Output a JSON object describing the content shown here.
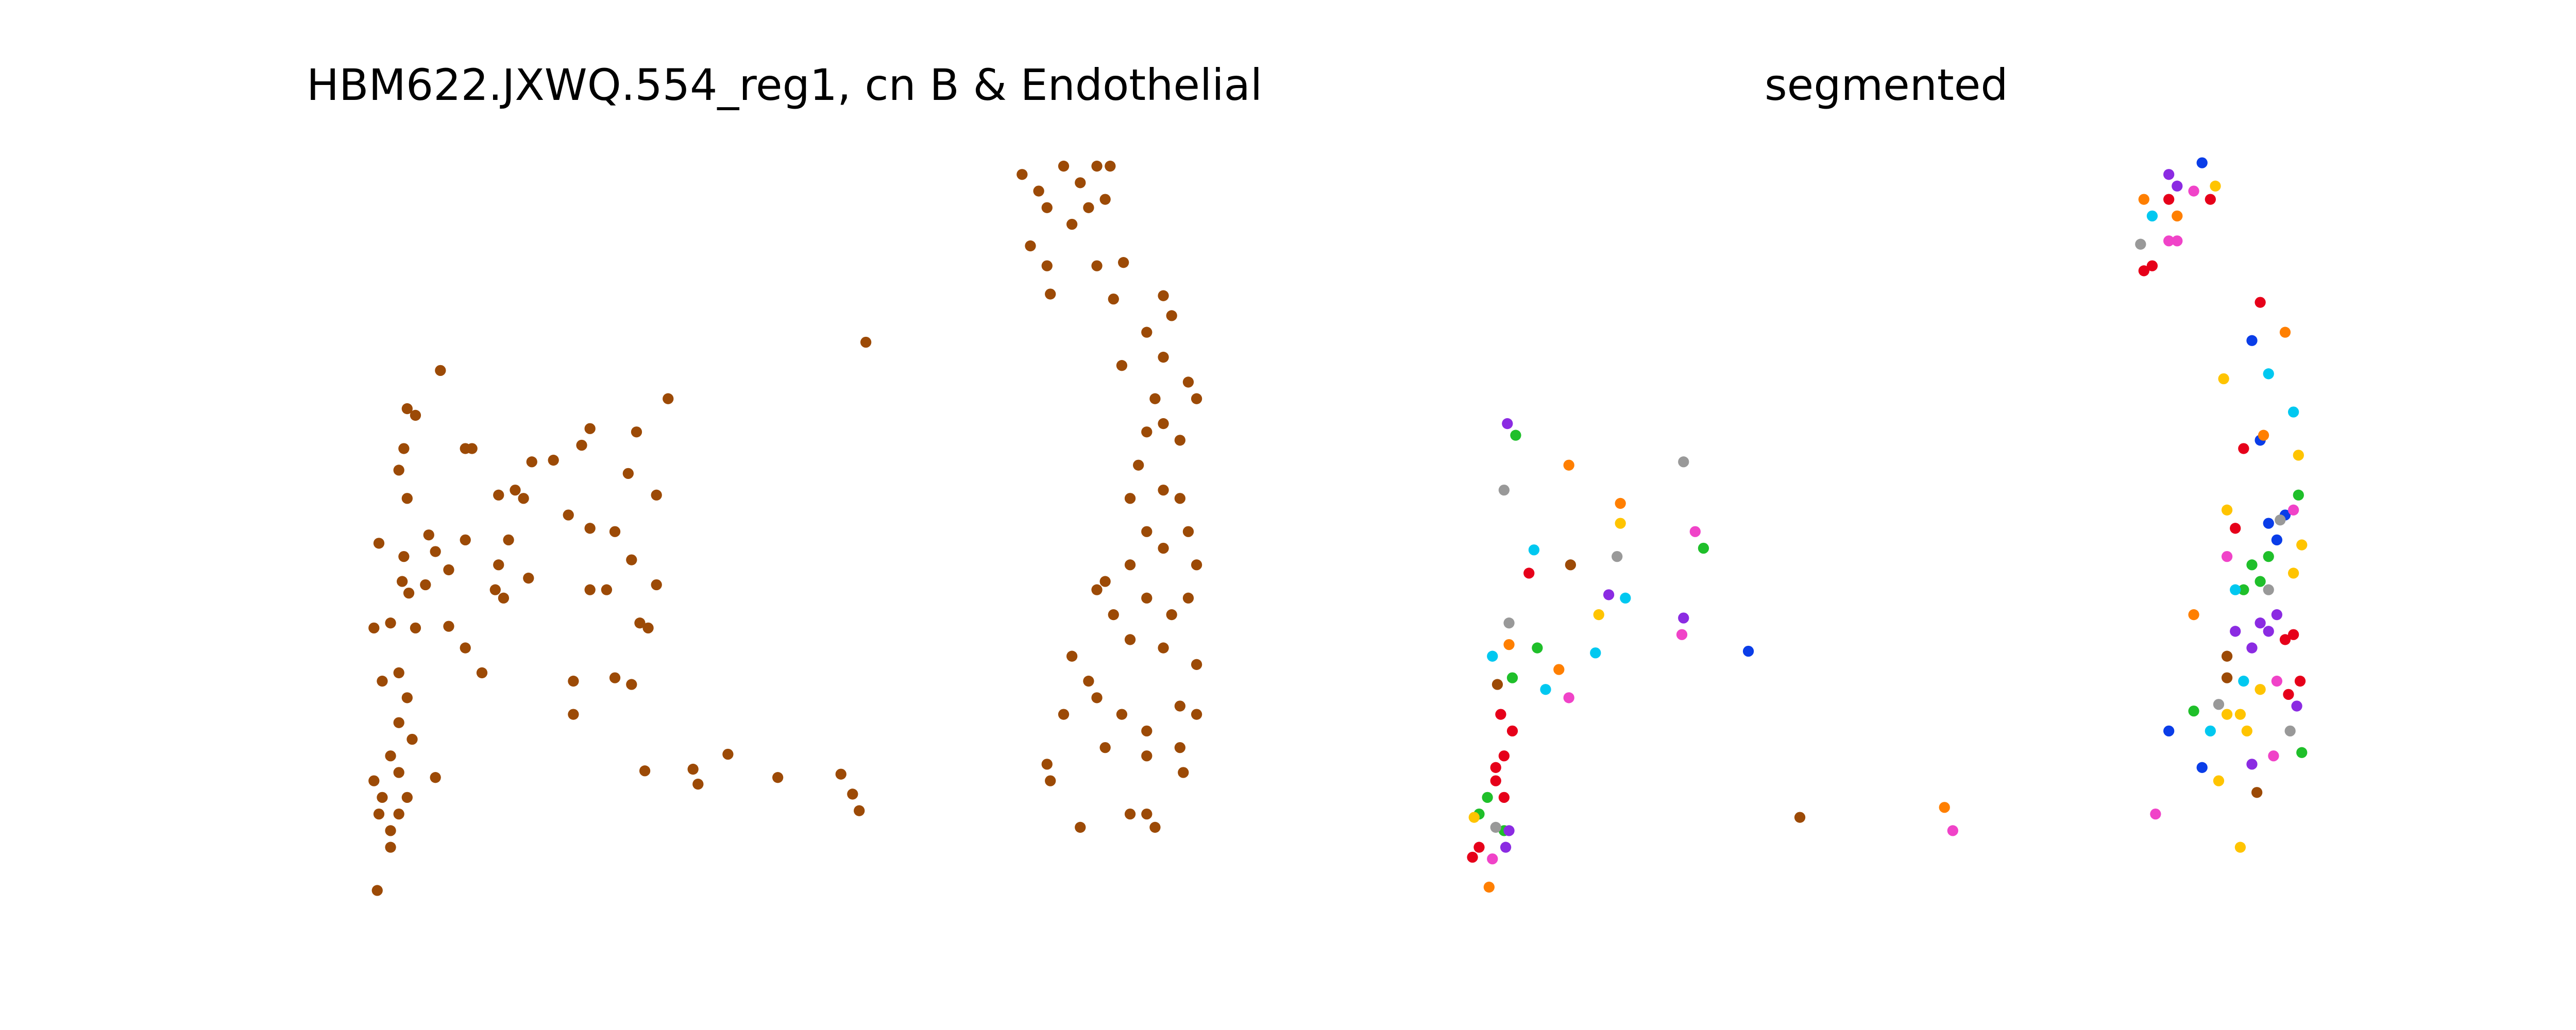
{
  "chart_data": [
    {
      "type": "scatter",
      "title": "HBM622.JXWQ.554_reg1, cn B & Endothelial",
      "xlim": [
        0,
        775
      ],
      "ylim": [
        620,
        0
      ],
      "series": [
        {
          "color": "#9c4a06",
          "x": [
            265,
            245,
            250,
            243,
            240,
            245,
            280,
            284,
            228,
            258,
            262,
            243,
            242,
            246,
            256,
            270,
            280,
            300,
            310,
            315,
            306,
            298,
            303,
            300,
            318,
            320,
            333,
            350,
            355,
            383,
            402,
            378,
            395,
            342,
            355,
            370,
            380,
            395,
            355,
            365,
            390,
            385,
            345,
            345,
            370,
            380,
            225,
            235,
            250,
            270,
            280,
            290,
            230,
            240,
            245,
            240,
            248,
            235,
            240,
            225,
            230,
            245,
            228,
            235,
            240,
            235,
            227,
            262,
            388,
            417,
            420,
            438,
            468,
            506,
            513,
            517,
            521,
            615,
            625,
            630,
            640,
            650,
            660,
            668,
            655,
            645,
            665,
            620,
            630,
            632,
            660,
            676,
            670,
            700,
            705,
            690,
            675,
            700,
            715,
            720,
            695,
            690,
            700,
            710,
            685,
            700,
            680,
            710,
            690,
            700,
            680,
            715,
            720,
            665,
            660,
            670,
            690,
            705,
            715,
            680,
            700,
            720,
            645,
            655,
            660,
            675,
            690,
            710,
            720,
            640,
            665,
            690,
            710,
            630,
            632,
            650,
            680,
            690,
            695,
            712
          ],
          "y": [
            223,
            246,
            250,
            270,
            283,
            300,
            270,
            270,
            327,
            322,
            332,
            335,
            350,
            357,
            352,
            343,
            325,
            298,
            295,
            300,
            325,
            355,
            360,
            340,
            348,
            278,
            277,
            268,
            258,
            260,
            240,
            285,
            298,
            310,
            318,
            320,
            337,
            352,
            355,
            355,
            378,
            375,
            410,
            430,
            408,
            412,
            378,
            375,
            378,
            377,
            390,
            405,
            410,
            405,
            420,
            435,
            445,
            455,
            465,
            470,
            480,
            480,
            490,
            500,
            490,
            510,
            536,
            468,
            464,
            463,
            472,
            454,
            468,
            466,
            478,
            488,
            206,
            105,
            115,
            125,
            100,
            110,
            100,
            100,
            125,
            135,
            120,
            148,
            160,
            177,
            160,
            158,
            180,
            178,
            190,
            200,
            220,
            215,
            230,
            240,
            240,
            260,
            255,
            265,
            280,
            295,
            300,
            300,
            320,
            330,
            340,
            320,
            340,
            350,
            355,
            370,
            360,
            370,
            360,
            385,
            390,
            400,
            395,
            410,
            420,
            430,
            440,
            425,
            430,
            430,
            450,
            455,
            450,
            460,
            470,
            498,
            490,
            490,
            498,
            465
          ]
        }
      ]
    },
    {
      "type": "scatter",
      "title": "segmented",
      "xlim": [
        775,
        1550
      ],
      "ylim": [
        620,
        0
      ],
      "series": [
        {
          "color": "#e6001a",
          "x": [
            1305,
            1330,
            1295,
            1290,
            1360,
            1350,
            1345,
            1380,
            1375,
            1384,
            1377,
            910,
            905,
            900,
            905,
            890,
            886,
            920,
            903,
            900
          ],
          "y": [
            120,
            120,
            160,
            163,
            182,
            270,
            318,
            382,
            385,
            410,
            418,
            440,
            455,
            470,
            480,
            510,
            516,
            345,
            430,
            462
          ]
        },
        {
          "color": "#1fbf2a",
          "x": [
            912,
            1383,
            1355,
            1360,
            1350,
            1365,
            1025,
            910,
            925,
            895,
            890,
            905,
            1320,
            1385
          ],
          "y": [
            262,
            298,
            340,
            350,
            355,
            335,
            330,
            408,
            390,
            480,
            490,
            500,
            428,
            453
          ]
        },
        {
          "color": "#8b2be2",
          "x": [
            907,
            1305,
            1310,
            1013,
            968,
            1360,
            1365,
            1355,
            1370,
            1345,
            1382,
            1355,
            908,
            906
          ],
          "y": [
            255,
            105,
            112,
            372,
            358,
            375,
            380,
            390,
            370,
            380,
            425,
            460,
            500,
            510
          ]
        },
        {
          "color": "#0a3de8",
          "x": [
            1325,
            1355,
            1360,
            1365,
            1370,
            1375,
            1052,
            1305,
            1325
          ],
          "y": [
            98,
            205,
            265,
            315,
            325,
            310,
            392,
            440,
            462
          ]
        },
        {
          "color": "#00c8f0",
          "x": [
            1295,
            1365,
            1380,
            923,
            978,
            960,
            898,
            930,
            1330,
            1350,
            1345
          ],
          "y": [
            130,
            225,
            248,
            331,
            360,
            393,
            395,
            415,
            440,
            410,
            355
          ]
        },
        {
          "color": "#ff7f00",
          "x": [
            1290,
            1310,
            944,
            975,
            908,
            938,
            1170,
            896,
            1320,
            1362,
            1375
          ],
          "y": [
            120,
            130,
            280,
            303,
            388,
            403,
            486,
            534,
            370,
            262,
            200
          ]
        },
        {
          "color": "#ffc400",
          "x": [
            1333,
            1338,
            1383,
            1340,
            1385,
            975,
            962,
            1348,
            1352,
            1340,
            1380,
            1335,
            887,
            1348,
            1360
          ],
          "y": [
            112,
            228,
            274,
            307,
            328,
            315,
            370,
            430,
            440,
            430,
            345,
            470,
            492,
            510,
            415
          ]
        },
        {
          "color": "#f043c8",
          "x": [
            1320,
            1305,
            1310,
            1020,
            1012,
            944,
            1175,
            1297,
            1340,
            1380,
            1370,
            1368,
            898
          ],
          "y": [
            115,
            145,
            145,
            320,
            382,
            420,
            500,
            490,
            335,
            307,
            410,
            455,
            517
          ]
        },
        {
          "color": "#9c4a06",
          "x": [
            1083,
            945,
            901,
            1340,
            1358,
            1340
          ],
          "y": [
            492,
            340,
            412,
            408,
            477,
            395
          ]
        },
        {
          "color": "#999999",
          "x": [
            1013,
            905,
            973,
            908,
            1288,
            1372,
            1335,
            1378,
            900,
            1365
          ],
          "y": [
            278,
            295,
            335,
            375,
            147,
            313,
            424,
            440,
            498,
            355
          ]
        }
      ]
    }
  ]
}
